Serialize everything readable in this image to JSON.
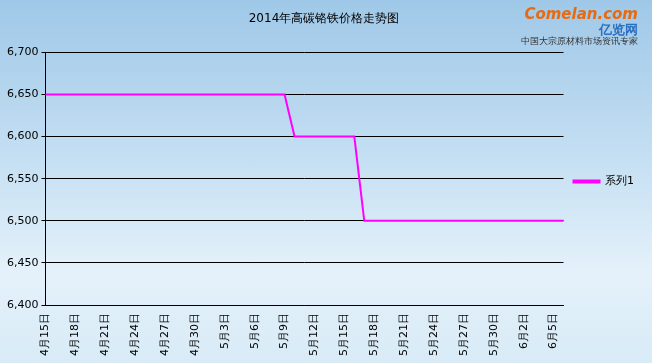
{
  "chart_data": {
    "type": "line",
    "title": "2014年高碳铬铁价格走势图",
    "annotations": [
      "Comelan.com",
      "亿览网",
      "中国大宗原材料市场资讯专家"
    ],
    "categories": [
      "4月15日",
      null,
      null,
      "4月18日",
      null,
      null,
      "4月21日",
      null,
      null,
      "4月24日",
      null,
      null,
      "4月27日",
      null,
      null,
      "4月30日",
      null,
      null,
      "5月3日",
      null,
      null,
      "5月6日",
      null,
      null,
      "5月9日",
      null,
      null,
      "5月12日",
      null,
      null,
      "5月15日",
      null,
      null,
      "5月18日",
      null,
      null,
      "5月21日",
      null,
      null,
      "5月24日",
      null,
      null,
      "5月27日",
      null,
      null,
      "5月30日",
      null,
      null,
      "6月2日",
      null,
      null,
      "6月5日",
      null
    ],
    "series": [
      {
        "name": "系列1",
        "color": "#ff00ff",
        "values": [
          6650,
          6650,
          6650,
          6650,
          6650,
          6650,
          6650,
          6650,
          6650,
          6650,
          6650,
          6650,
          6650,
          6650,
          6650,
          6650,
          6650,
          6650,
          6650,
          6650,
          6650,
          6650,
          6650,
          6650,
          6650,
          6600,
          6600,
          6600,
          6600,
          6600,
          6600,
          6600,
          6500,
          6500,
          6500,
          6500,
          6500,
          6500,
          6500,
          6500,
          6500,
          6500,
          6500,
          6500,
          6500,
          6500,
          6500,
          6500,
          6500,
          6500,
          6500,
          6500,
          6500
        ]
      }
    ],
    "ylim": [
      6400,
      6700
    ],
    "yticks": [
      6400,
      6450,
      6500,
      6550,
      6600,
      6650,
      6700
    ],
    "grid": true,
    "legend": "right"
  }
}
